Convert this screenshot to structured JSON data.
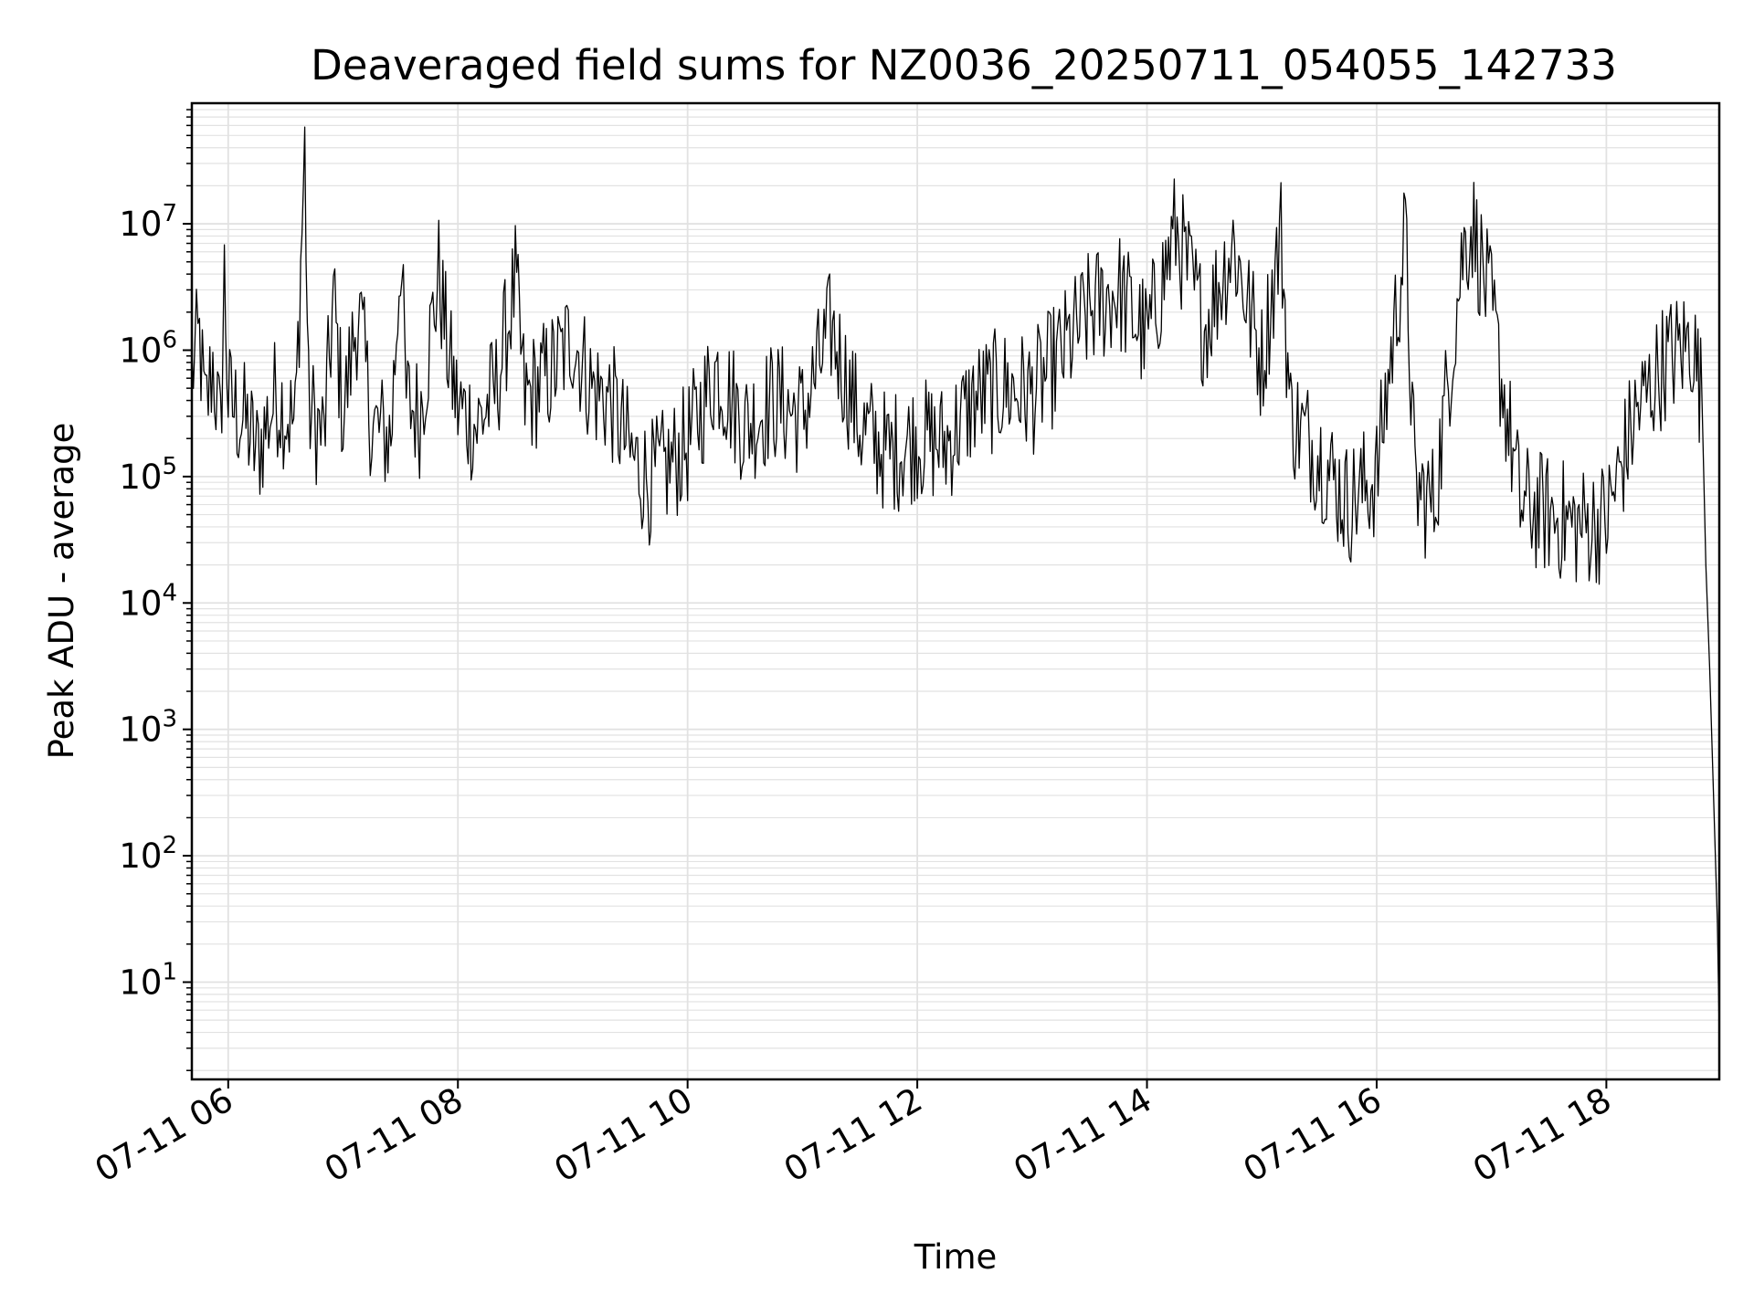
{
  "chart_data": {
    "type": "line",
    "title": "Deaveraged field sums for NZ0036_20250711_054055_142733",
    "xlabel": "Time",
    "ylabel": "Peak ADU - average",
    "yscale": "log",
    "grid": true,
    "grid_minor": true,
    "line_color": "#000000",
    "grid_color": "#e2e2e2",
    "x_axis": {
      "kind": "datetime",
      "range": [
        "2025-07-11 05:41",
        "2025-07-11 18:59"
      ],
      "tick_labels": [
        "07-11 06",
        "07-11 08",
        "07-11 10",
        "07-11 12",
        "07-11 14",
        "07-11 16",
        "07-11 18"
      ],
      "tick_values": [
        "2025-07-11 06:00",
        "2025-07-11 08:00",
        "2025-07-11 10:00",
        "2025-07-11 12:00",
        "2025-07-11 14:00",
        "2025-07-11 16:00",
        "2025-07-11 18:00"
      ],
      "tick_rotation_deg": 30
    },
    "y_axis": {
      "range": [
        1.7,
        90000000
      ],
      "major_ticks": [
        10,
        100,
        1000,
        10000,
        100000,
        1000000,
        10000000
      ],
      "tick_labels": [
        {
          "base": "10",
          "exp": "1"
        },
        {
          "base": "10",
          "exp": "2"
        },
        {
          "base": "10",
          "exp": "3"
        },
        {
          "base": "10",
          "exp": "4"
        },
        {
          "base": "10",
          "exp": "5"
        },
        {
          "base": "10",
          "exp": "6"
        },
        {
          "base": "10",
          "exp": "7"
        }
      ]
    },
    "series": [
      {
        "color": "#000000",
        "points": [
          [
            "2025-07-11 05:41",
            700000
          ],
          [
            "2025-07-11 05:45",
            1200000
          ],
          [
            "2025-07-11 05:48",
            300000
          ],
          [
            "2025-07-11 05:52",
            800000
          ],
          [
            "2025-07-11 05:56",
            200000
          ],
          [
            "2025-07-11 05:58",
            4000000
          ],
          [
            "2025-07-11 06:00",
            400000
          ],
          [
            "2025-07-11 06:10",
            250000
          ],
          [
            "2025-07-11 06:15",
            150000
          ],
          [
            "2025-07-11 06:25",
            450000
          ],
          [
            "2025-07-11 06:35",
            250000
          ],
          [
            "2025-07-11 06:40",
            40000000
          ],
          [
            "2025-07-11 06:42",
            350000
          ],
          [
            "2025-07-11 06:50",
            200000
          ],
          [
            "2025-07-11 06:55",
            2600000
          ],
          [
            "2025-07-11 07:00",
            300000
          ],
          [
            "2025-07-11 07:08",
            2200000
          ],
          [
            "2025-07-11 07:15",
            250000
          ],
          [
            "2025-07-11 07:25",
            200000
          ],
          [
            "2025-07-11 07:30",
            6500000
          ],
          [
            "2025-07-11 07:33",
            400000
          ],
          [
            "2025-07-11 07:40",
            300000
          ],
          [
            "2025-07-11 07:50",
            4000000
          ],
          [
            "2025-07-11 07:55",
            900000
          ],
          [
            "2025-07-11 08:00",
            350000
          ],
          [
            "2025-07-11 08:10",
            250000
          ],
          [
            "2025-07-11 08:20",
            500000
          ],
          [
            "2025-07-11 08:30",
            3400000
          ],
          [
            "2025-07-11 08:35",
            400000
          ],
          [
            "2025-07-11 08:50",
            700000
          ],
          [
            "2025-07-11 09:00",
            1300000
          ],
          [
            "2025-07-11 09:10",
            500000
          ],
          [
            "2025-07-11 09:20",
            400000
          ],
          [
            "2025-07-11 09:30",
            150000
          ],
          [
            "2025-07-11 09:40",
            90000
          ],
          [
            "2025-07-11 09:50",
            120000
          ],
          [
            "2025-07-11 10:00",
            180000
          ],
          [
            "2025-07-11 10:15",
            700000
          ],
          [
            "2025-07-11 10:30",
            250000
          ],
          [
            "2025-07-11 10:45",
            400000
          ],
          [
            "2025-07-11 11:00",
            300000
          ],
          [
            "2025-07-11 11:15",
            1500000
          ],
          [
            "2025-07-11 11:30",
            250000
          ],
          [
            "2025-07-11 11:45",
            150000
          ],
          [
            "2025-07-11 12:00",
            200000
          ],
          [
            "2025-07-11 12:15",
            180000
          ],
          [
            "2025-07-11 12:30",
            400000
          ],
          [
            "2025-07-11 12:45",
            500000
          ],
          [
            "2025-07-11 13:00",
            450000
          ],
          [
            "2025-07-11 13:15",
            900000
          ],
          [
            "2025-07-11 13:30",
            2000000
          ],
          [
            "2025-07-11 13:45",
            3000000
          ],
          [
            "2025-07-11 14:00",
            1200000
          ],
          [
            "2025-07-11 14:15",
            9000000
          ],
          [
            "2025-07-11 14:30",
            1500000
          ],
          [
            "2025-07-11 14:45",
            7000000
          ],
          [
            "2025-07-11 15:00",
            800000
          ],
          [
            "2025-07-11 15:10",
            8500000
          ],
          [
            "2025-07-11 15:15",
            300000
          ],
          [
            "2025-07-11 15:30",
            150000
          ],
          [
            "2025-07-11 15:45",
            60000
          ],
          [
            "2025-07-11 16:00",
            100000
          ],
          [
            "2025-07-11 16:15",
            8000000
          ],
          [
            "2025-07-11 16:20",
            80000
          ],
          [
            "2025-07-11 16:30",
            60000
          ],
          [
            "2025-07-11 16:45",
            6000000
          ],
          [
            "2025-07-11 16:50",
            10000000
          ],
          [
            "2025-07-11 17:00",
            2000000
          ],
          [
            "2025-07-11 17:15",
            60000
          ],
          [
            "2025-07-11 17:30",
            50000
          ],
          [
            "2025-07-11 17:45",
            40000
          ],
          [
            "2025-07-11 18:00",
            45000
          ],
          [
            "2025-07-11 18:15",
            300000
          ],
          [
            "2025-07-11 18:30",
            800000
          ],
          [
            "2025-07-11 18:45",
            1200000
          ],
          [
            "2025-07-11 18:50",
            400000
          ],
          [
            "2025-07-11 18:52",
            20000
          ],
          [
            "2025-07-11 18:54",
            3000
          ],
          [
            "2025-07-11 18:56",
            300
          ],
          [
            "2025-07-11 18:58",
            30
          ],
          [
            "2025-07-11 18:59",
            4
          ]
        ]
      }
    ]
  }
}
